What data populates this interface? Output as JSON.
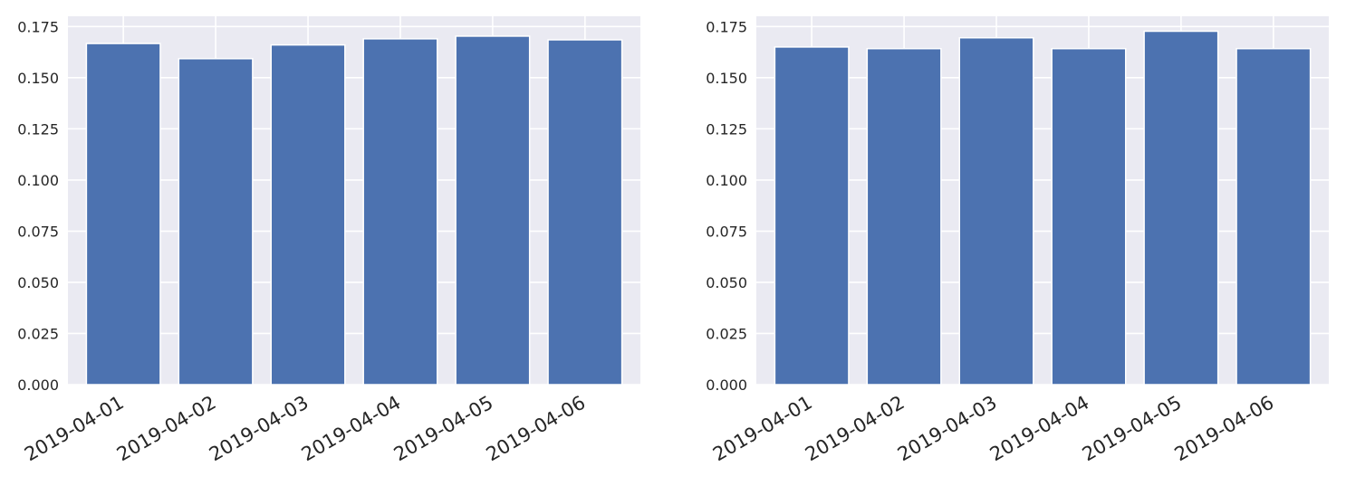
{
  "colors": {
    "bar": "#4c72b0",
    "plot_background": "#eaeaf2",
    "grid": "#ffffff",
    "text": "#262626"
  },
  "chart_data": [
    {
      "type": "bar",
      "categories": [
        "2019-04-01",
        "2019-04-02",
        "2019-04-03",
        "2019-04-04",
        "2019-04-05",
        "2019-04-06"
      ],
      "values": [
        0.1667,
        0.1593,
        0.166,
        0.169,
        0.1703,
        0.1685
      ],
      "title": "",
      "xlabel": "",
      "ylabel": "",
      "ylim": [
        0,
        0.18
      ],
      "yticks": [
        "0.000",
        "0.025",
        "0.050",
        "0.075",
        "0.100",
        "0.125",
        "0.150",
        "0.175"
      ],
      "grid": true,
      "legend": "none"
    },
    {
      "type": "bar",
      "categories": [
        "2019-04-01",
        "2019-04-02",
        "2019-04-03",
        "2019-04-04",
        "2019-04-05",
        "2019-04-06"
      ],
      "values": [
        0.165,
        0.1642,
        0.1695,
        0.1642,
        0.1727,
        0.1642
      ],
      "title": "",
      "xlabel": "",
      "ylabel": "",
      "ylim": [
        0,
        0.18
      ],
      "yticks": [
        "0.000",
        "0.025",
        "0.050",
        "0.075",
        "0.100",
        "0.125",
        "0.150",
        "0.175"
      ],
      "grid": true,
      "legend": "none"
    }
  ]
}
